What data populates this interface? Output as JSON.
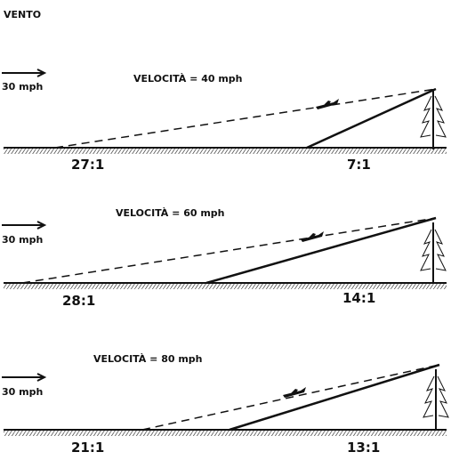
{
  "title": "VENTO",
  "panels": [
    {
      "wind_label": "30 mph",
      "speed_label": "VELOCITÀ = 40 mph",
      "ratios": [
        "27:1",
        "7:1"
      ]
    },
    {
      "wind_label": "30 mph",
      "speed_label": "VELOCITÀ = 60 mph",
      "ratios": [
        "28:1",
        "14:1"
      ]
    },
    {
      "wind_label": "30 mph",
      "speed_label": "VELOCITÀ = 80 mph",
      "ratios": [
        "21:1",
        "13:1"
      ]
    }
  ]
}
